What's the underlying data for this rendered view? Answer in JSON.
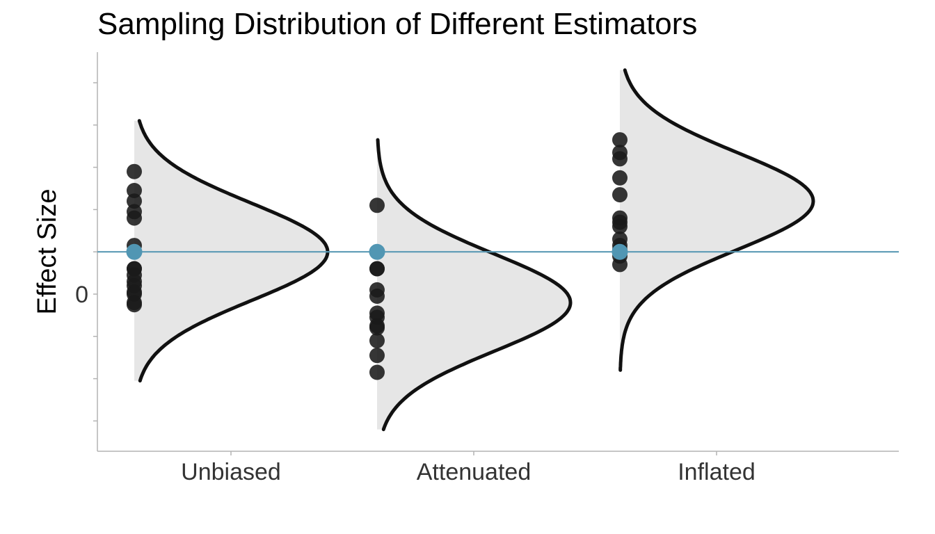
{
  "chart_data": {
    "type": "density",
    "title": "Sampling Distribution of Different Estimators",
    "xlabel": "",
    "ylabel": "Effect Size",
    "categories": [
      "Unbiased",
      "Attenuated",
      "Inflated"
    ],
    "ylim": [
      -3.75,
      5.7
    ],
    "y_ticks": [
      -3,
      -2,
      -1,
      0,
      1,
      2,
      3,
      4,
      5
    ],
    "y_tick_labels": [
      "",
      "",
      "",
      "0",
      "",
      "",
      "",
      "",
      ""
    ],
    "true_value": 1,
    "grid": false,
    "distributions": [
      {
        "category": "Unbiased",
        "mean": 1,
        "sd": 1.15,
        "range": [
          -2.05,
          4.1
        ],
        "samples": [
          2.9,
          2.45,
          2.2,
          1.95,
          1.8,
          1.15,
          0.6,
          0.6,
          0.45,
          0.3,
          0.2,
          0.05,
          0.0,
          -0.2,
          -0.25
        ]
      },
      {
        "category": "Attenuated",
        "mean": -0.2,
        "sd": 1.15,
        "range": [
          -3.2,
          3.65
        ],
        "samples": [
          2.1,
          0.6,
          0.6,
          0.1,
          -0.05,
          -0.45,
          -0.55,
          -0.75,
          -0.8,
          -1.1,
          -1.45,
          -1.85
        ]
      },
      {
        "category": "Inflated",
        "mean": 2.2,
        "sd": 1.15,
        "range": [
          -1.8,
          5.3
        ],
        "samples": [
          3.65,
          3.35,
          3.2,
          2.75,
          2.35,
          1.8,
          1.7,
          1.6,
          1.3,
          1.15,
          1.05,
          0.9,
          0.7
        ]
      }
    ],
    "reference_point_color": "#5196b3",
    "reference_line_color": "#5b9ab5"
  }
}
